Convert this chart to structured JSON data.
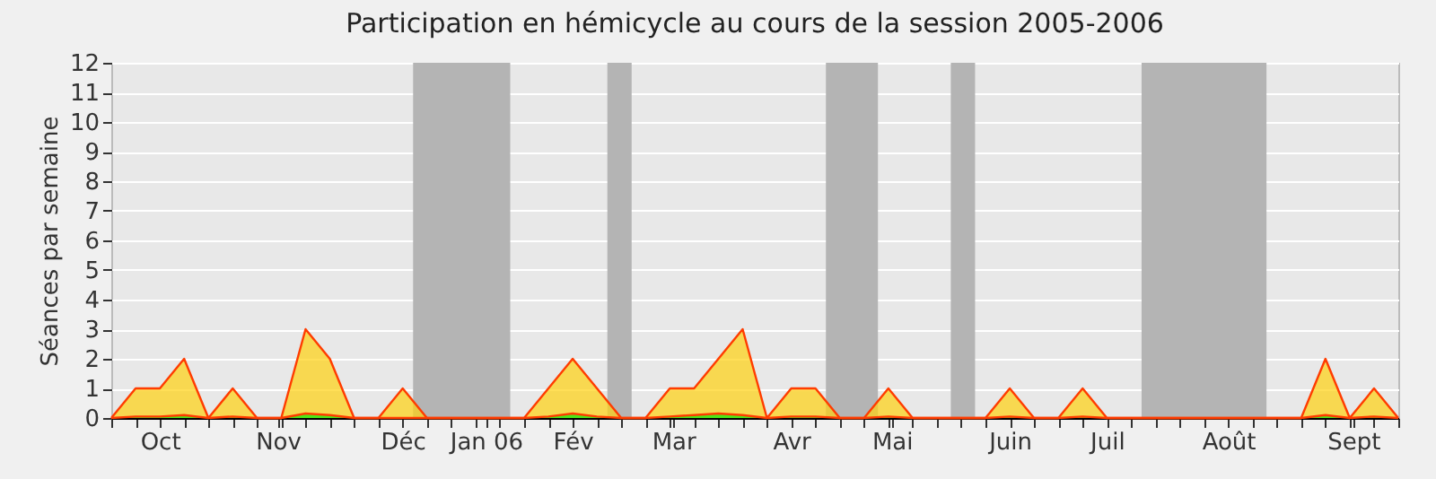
{
  "chart_data": {
    "type": "area",
    "title": "Participation en hémicycle au cours de la session 2005-2006",
    "ylabel": "Séances par semaine",
    "x": [
      "2005-10-01",
      "2005-10-08",
      "2005-10-15",
      "2005-10-22",
      "2005-10-29",
      "2005-11-05",
      "2005-11-12",
      "2005-11-19",
      "2005-11-26",
      "2005-12-03",
      "2005-12-10",
      "2005-12-17",
      "2005-12-24",
      "2005-12-31",
      "2006-01-07",
      "2006-01-14",
      "2006-01-21",
      "2006-01-28",
      "2006-02-04",
      "2006-02-11",
      "2006-02-18",
      "2006-02-25",
      "2006-03-04",
      "2006-03-11",
      "2006-03-18",
      "2006-03-25",
      "2006-04-01",
      "2006-04-08",
      "2006-04-15",
      "2006-04-22",
      "2006-04-29",
      "2006-05-06",
      "2006-05-13",
      "2006-05-20",
      "2006-05-27",
      "2006-06-03",
      "2006-06-10",
      "2006-06-17",
      "2006-06-24",
      "2006-07-01",
      "2006-07-08",
      "2006-07-15",
      "2006-07-22",
      "2006-07-29",
      "2006-08-05",
      "2006-08-12",
      "2006-08-19",
      "2006-08-26",
      "2006-09-02",
      "2006-09-09",
      "2006-09-16",
      "2006-09-23",
      "2006-09-30",
      "2006-10-07"
    ],
    "series": [
      {
        "color": "#ffd20f",
        "values": [
          0,
          1,
          1,
          2,
          0,
          1,
          0,
          0,
          3,
          2,
          0,
          0,
          1,
          0,
          0,
          0,
          0,
          0,
          1,
          2,
          1,
          0,
          0,
          1,
          1,
          2,
          3,
          0,
          1,
          1,
          0,
          0,
          1,
          0,
          0,
          0,
          0,
          1,
          0,
          0,
          1,
          0,
          0,
          0,
          0,
          0,
          0,
          0,
          0,
          0,
          2,
          0,
          1,
          0
        ]
      },
      {
        "color": "#00ee00",
        "values": [
          0,
          0.05,
          0.05,
          0.1,
          0,
          0.05,
          0,
          0,
          0.15,
          0.1,
          0,
          0,
          0,
          0,
          0,
          0,
          0,
          0,
          0.05,
          0.15,
          0.05,
          0,
          0,
          0.05,
          0.1,
          0.15,
          0.1,
          0,
          0.05,
          0.05,
          0,
          0,
          0.05,
          0,
          0,
          0,
          0,
          0.05,
          0,
          0,
          0.05,
          0,
          0,
          0,
          0,
          0,
          0,
          0,
          0,
          0,
          0.1,
          0,
          0.05,
          0
        ]
      }
    ],
    "xlim": [
      "2005-10-01",
      "2006-10-07"
    ],
    "xticks": [
      {
        "value": "2005-10-15",
        "label": "Oct"
      },
      {
        "value": "2005-11-18",
        "label": "Nov"
      },
      {
        "value": "2005-12-24",
        "label": "Déc"
      },
      {
        "value": "2006-01-17",
        "label": "Jan 06"
      },
      {
        "value": "2006-02-11",
        "label": "Fév"
      },
      {
        "value": "2006-03-12",
        "label": "Mar"
      },
      {
        "value": "2006-04-15",
        "label": "Avr"
      },
      {
        "value": "2006-05-14",
        "label": "Mai"
      },
      {
        "value": "2006-06-17",
        "label": "Juin"
      },
      {
        "value": "2006-07-15",
        "label": "Juil"
      },
      {
        "value": "2006-08-19",
        "label": "Août"
      },
      {
        "value": "2006-09-24",
        "label": "Sept"
      }
    ],
    "ylim": [
      0,
      12
    ],
    "yticks": [
      0,
      1,
      2,
      3,
      4,
      5,
      6,
      7,
      8,
      9,
      10,
      11,
      12
    ],
    "grid": "y",
    "bands": [
      {
        "axis": "x",
        "from": "2005-12-27",
        "to": "2006-01-24",
        "color": "#b4b4b4"
      },
      {
        "axis": "x",
        "from": "2006-02-21",
        "to": "2006-02-28",
        "color": "#b4b4b4"
      },
      {
        "axis": "x",
        "from": "2006-04-25",
        "to": "2006-05-10",
        "color": "#b4b4b4"
      },
      {
        "axis": "x",
        "from": "2006-05-31",
        "to": "2006-06-07",
        "color": "#b4b4b4"
      },
      {
        "axis": "x",
        "from": "2006-07-25",
        "to": "2006-08-30",
        "color": "#b4b4b4"
      }
    ]
  }
}
